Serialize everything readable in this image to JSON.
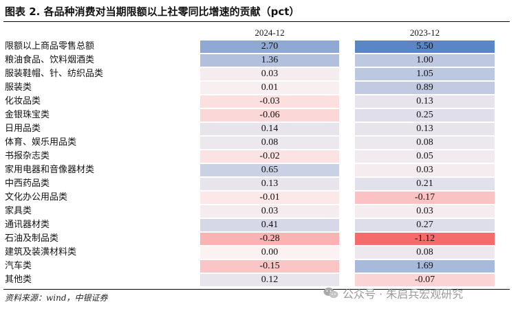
{
  "title": "图表 2. 各品种消费对当期限额以上社零同比增速的贡献（pct）",
  "columns": [
    "2024-12",
    "2023-12"
  ],
  "rows": [
    {
      "label": "限额以上商品零售总额",
      "v1": "2.70",
      "v2": "5.50"
    },
    {
      "label": "粮油食品、饮料烟酒类",
      "v1": "1.36",
      "v2": "1.00"
    },
    {
      "label": "服装鞋帽、针、纺织品类",
      "v1": "0.03",
      "v2": "1.05"
    },
    {
      "label": "服装类",
      "v1": "0.01",
      "v2": "0.89"
    },
    {
      "label": "化妆品类",
      "v1": "-0.03",
      "v2": "0.13"
    },
    {
      "label": "金银珠宝类",
      "v1": "-0.06",
      "v2": "0.25"
    },
    {
      "label": "日用品类",
      "v1": "0.14",
      "v2": "0.13"
    },
    {
      "label": "体育、娱乐用品类",
      "v1": "0.08",
      "v2": "0.08"
    },
    {
      "label": "书报杂志类",
      "v1": "-0.02",
      "v2": "0.05"
    },
    {
      "label": "家用电器和音像器材类",
      "v1": "0.65",
      "v2": "0.03"
    },
    {
      "label": "中西药品类",
      "v1": "0.13",
      "v2": "0.21"
    },
    {
      "label": "文化办公用品类",
      "v1": "-0.01",
      "v2": "-0.17"
    },
    {
      "label": "家具类",
      "v1": "0.03",
      "v2": "0.03"
    },
    {
      "label": "通讯器材类",
      "v1": "0.41",
      "v2": "0.27"
    },
    {
      "label": "石油及制品类",
      "v1": "-0.28",
      "v2": "-1.12"
    },
    {
      "label": "建筑及装潢材料类",
      "v1": "0.00",
      "v2": "0.08"
    },
    {
      "label": "汽车类",
      "v1": "-0.15",
      "v2": "1.69"
    },
    {
      "label": "其他类",
      "v1": "0.12",
      "v2": "-0.07"
    }
  ],
  "source": "资料来源：wind，中银证券",
  "watermark": "公众号 · 朱启兵宏观研究",
  "colors": {
    "text": "#111111",
    "rule": "#000000",
    "watermark": "#9a9a9a",
    "heatmap_high": "#5b86c6",
    "heatmap_low": "#f56b6b",
    "heatmap_mid": "#fdf2f2"
  }
}
